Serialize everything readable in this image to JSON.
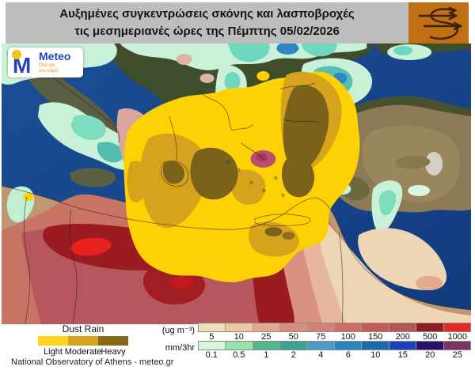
{
  "header": {
    "title_line1": "Αυξημένες συγκεντρώσεις σκόνης και λασποβροχές",
    "title_line2": "τις μεσημεριανές ώρες της Πέμπτης 05/02/2026"
  },
  "logo": {
    "monogram": "M",
    "brand": "Meteo",
    "tagline_line1": "Όλα για",
    "tagline_line2": "τον καιρό"
  },
  "legend": {
    "dust_rain": {
      "title": "Dust Rain",
      "classes": [
        {
          "label": "Light",
          "color": "#fed51b"
        },
        {
          "label": "Moderate",
          "color": "#d6a31d"
        },
        {
          "label": "Heavy",
          "color": "#8a6a16"
        }
      ]
    },
    "credit": "National Observatory of Athens - meteo.gr"
  },
  "scales": [
    {
      "name": "dust-concentration",
      "unit_label": "(ug m⁻³)",
      "tick_labels": [
        "5",
        "10",
        "25",
        "50",
        "75",
        "100",
        "150",
        "200",
        "500",
        "1000"
      ],
      "colors": [
        "#f2ddbb",
        "#ecc9a1",
        "#e2a78c",
        "#d98d80",
        "#d48078",
        "#cc6d64",
        "#c25c55",
        "#b35551",
        "#8e1d23",
        "#e42822"
      ]
    },
    {
      "name": "rain-accumulation",
      "unit_label": "mm/3hr",
      "tick_labels": [
        "0.1",
        "0.5",
        "1",
        "2",
        "4",
        "6",
        "10",
        "15",
        "20",
        "25"
      ],
      "colors": [
        "#d8f5da",
        "#97e3a8",
        "#53b68f",
        "#3fa290",
        "#4b9cc3",
        "#2b85bf",
        "#1a6aac",
        "#1c3fbc",
        "#2a0f62",
        "#7c3366"
      ]
    }
  ],
  "map": {
    "palette": {
      "sea": "#17438b",
      "land_europe": "#3f4d2b",
      "land_turkey": "#8b7a55",
      "land_africa": "#bd9870",
      "rain_light": "#c9f1d8",
      "rain_moderate": "#55c0b2",
      "rain_heavy": "#2f86c2",
      "dust_rain_light": "#fed105",
      "dust_rain_moderate": "#d6a31d",
      "dust_rain_heavy": "#7b621b",
      "dust_conc_high": "#9c1b23",
      "dust_conc_extreme": "#e8231f"
    }
  }
}
